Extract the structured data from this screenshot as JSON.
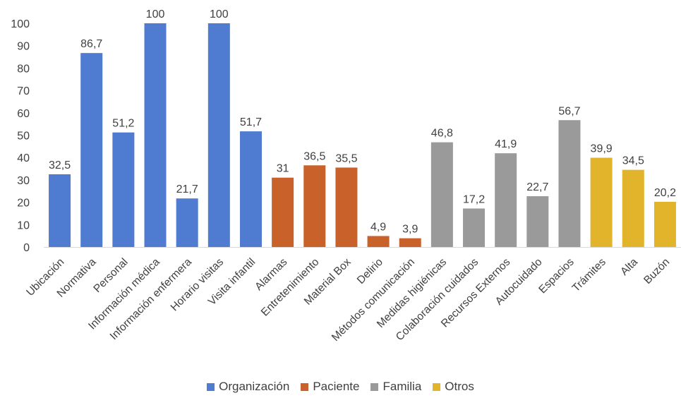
{
  "chart_data": {
    "type": "bar",
    "title": "",
    "xlabel": "",
    "ylabel": "",
    "ylim": [
      0,
      100
    ],
    "yticks": [
      "0",
      "10",
      "20",
      "30",
      "40",
      "50",
      "60",
      "70",
      "80",
      "90",
      "100"
    ],
    "grid": false,
    "legend_position": "bottom",
    "groups": [
      {
        "name": "Organización",
        "color": "#4f7bd0"
      },
      {
        "name": "Paciente",
        "color": "#c8612a"
      },
      {
        "name": "Familia",
        "color": "#9a9a9a"
      },
      {
        "name": "Otros",
        "color": "#e2b42b"
      }
    ],
    "categories": [
      "Ubicación",
      "Normativa",
      "Personal",
      "Información médica",
      "Información enfermera",
      "Horario visitas",
      "Visita infantil",
      "Alarmas",
      "Entretenimiento",
      "Material Box",
      "Delirio",
      "Métodos comunicación",
      "Medidas higiénicas",
      "Colaboración cuidados",
      "Recursos Externos",
      "Autocuidado",
      "Espacios",
      "Trámites",
      "Alta",
      "Buzón"
    ],
    "values": [
      32.5,
      86.7,
      51.2,
      100,
      21.7,
      100,
      51.7,
      31,
      36.5,
      35.5,
      4.9,
      3.9,
      46.8,
      17.2,
      41.9,
      22.7,
      56.7,
      39.9,
      34.5,
      20.2
    ],
    "value_labels": [
      "32,5",
      "86,7",
      "51,2",
      "100",
      "21,7",
      "100",
      "51,7",
      "31",
      "36,5",
      "35,5",
      "4,9",
      "3,9",
      "46,8",
      "17,2",
      "41,9",
      "22,7",
      "56,7",
      "39,9",
      "34,5",
      "20,2"
    ],
    "group_index": [
      0,
      0,
      0,
      0,
      0,
      0,
      0,
      1,
      1,
      1,
      1,
      1,
      2,
      2,
      2,
      2,
      2,
      3,
      3,
      3
    ]
  }
}
